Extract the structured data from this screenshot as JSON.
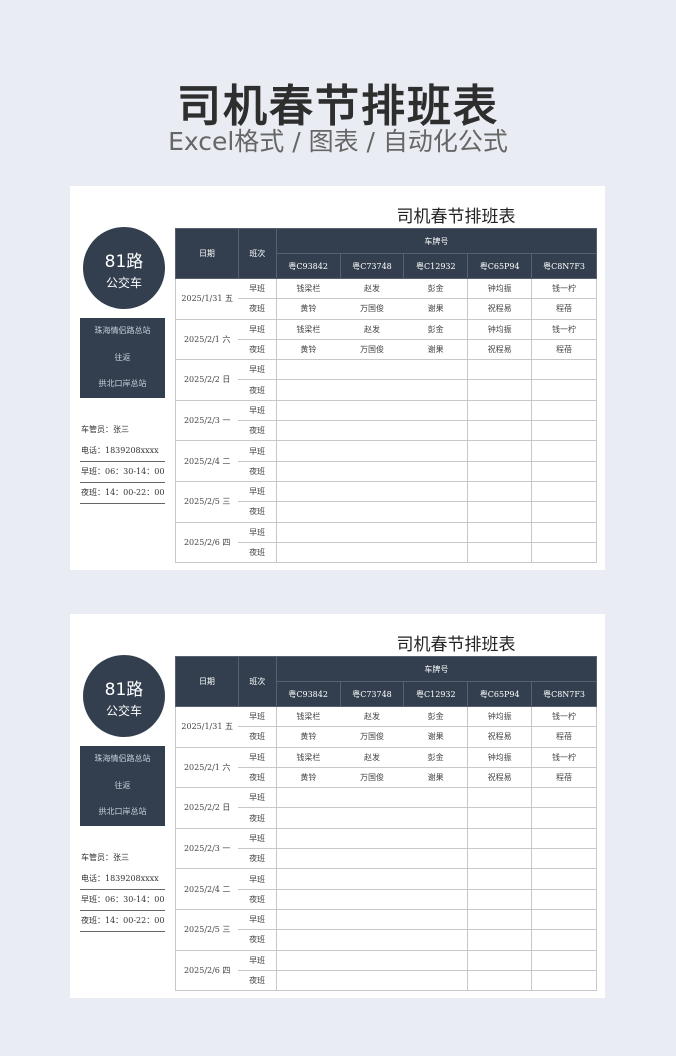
{
  "header": {
    "title": "司机春节排班表",
    "subtitle": "Excel格式 / 图表 / 自动化公式"
  },
  "sheet": {
    "title": "司机春节排班表",
    "route": {
      "number": "81路",
      "type": "公交车",
      "stops": [
        "珠海情侣路总站",
        "往返",
        "拱北口岸总站"
      ]
    },
    "info": [
      "车管员：张三",
      "电话：1839208xxxx",
      "早班：06：30-14：00",
      "夜班：14：00-22：00"
    ],
    "columns": {
      "date": "日期",
      "shift": "班次",
      "plate_group": "车牌号",
      "plates": [
        "粤C93842",
        "粤C73748",
        "粤C12932",
        "粤C65P94",
        "粤C8N7F3"
      ]
    },
    "days": [
      {
        "date": "2025/1/31 五",
        "rows": [
          {
            "shift": "早班",
            "names": [
              "钱梁栏",
              "赵发",
              "彭金",
              "钟均振",
              "钱一柠"
            ]
          },
          {
            "shift": "夜班",
            "names": [
              "黄铃",
              "万国俊",
              "谢果",
              "祝程易",
              "程蓓"
            ]
          }
        ]
      },
      {
        "date": "2025/2/1 六",
        "rows": [
          {
            "shift": "早班",
            "names": [
              "钱梁栏",
              "赵发",
              "彭金",
              "钟均振",
              "钱一柠"
            ]
          },
          {
            "shift": "夜班",
            "names": [
              "黄铃",
              "万国俊",
              "谢果",
              "祝程易",
              "程蓓"
            ]
          }
        ]
      },
      {
        "date": "2025/2/2 日",
        "rows": [
          {
            "shift": "早班",
            "names": [
              "",
              "",
              "",
              "",
              ""
            ]
          },
          {
            "shift": "夜班",
            "names": [
              "",
              "",
              "",
              "",
              ""
            ]
          }
        ]
      },
      {
        "date": "2025/2/3 一",
        "rows": [
          {
            "shift": "早班",
            "names": [
              "",
              "",
              "",
              "",
              ""
            ]
          },
          {
            "shift": "夜班",
            "names": [
              "",
              "",
              "",
              "",
              ""
            ]
          }
        ]
      },
      {
        "date": "2025/2/4 二",
        "rows": [
          {
            "shift": "早班",
            "names": [
              "",
              "",
              "",
              "",
              ""
            ]
          },
          {
            "shift": "夜班",
            "names": [
              "",
              "",
              "",
              "",
              ""
            ]
          }
        ]
      },
      {
        "date": "2025/2/5 三",
        "rows": [
          {
            "shift": "早班",
            "names": [
              "",
              "",
              "",
              "",
              ""
            ]
          },
          {
            "shift": "夜班",
            "names": [
              "",
              "",
              "",
              "",
              ""
            ]
          }
        ]
      },
      {
        "date": "2025/2/6 四",
        "rows": [
          {
            "shift": "早班",
            "names": [
              "",
              "",
              "",
              "",
              ""
            ]
          },
          {
            "shift": "夜班",
            "names": [
              "",
              "",
              "",
              "",
              ""
            ]
          }
        ]
      }
    ]
  },
  "colors": {
    "accent": "#333f4f",
    "background": "#e9edf3"
  }
}
